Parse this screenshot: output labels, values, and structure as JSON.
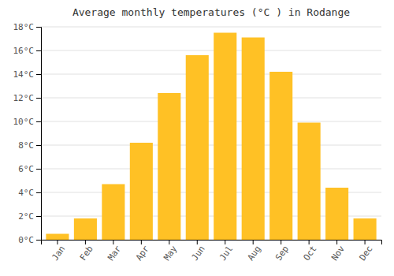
{
  "chart_data": {
    "type": "bar",
    "title": "Average monthly temperatures (°C ) in Rodange",
    "categories": [
      "Jan",
      "Feb",
      "Mar",
      "Apr",
      "May",
      "Jun",
      "Jul",
      "Aug",
      "Sep",
      "Oct",
      "Nov",
      "Dec"
    ],
    "values": [
      0.5,
      1.8,
      4.7,
      8.2,
      12.4,
      15.6,
      17.5,
      17.1,
      14.2,
      9.9,
      4.4,
      1.8
    ],
    "color": "#FFC125",
    "ylim": [
      0,
      18
    ],
    "yticks": [
      {
        "value": 0,
        "label": "0°C"
      },
      {
        "value": 2,
        "label": "2°C"
      },
      {
        "value": 4,
        "label": "4°C"
      },
      {
        "value": 6,
        "label": "6°C"
      },
      {
        "value": 8,
        "label": "8°C"
      },
      {
        "value": 10,
        "label": "10°C"
      },
      {
        "value": 12,
        "label": "12°C"
      },
      {
        "value": 14,
        "label": "14°C"
      },
      {
        "value": 16,
        "label": "16°C"
      },
      {
        "value": 18,
        "label": "18°C"
      }
    ],
    "grid": true
  }
}
